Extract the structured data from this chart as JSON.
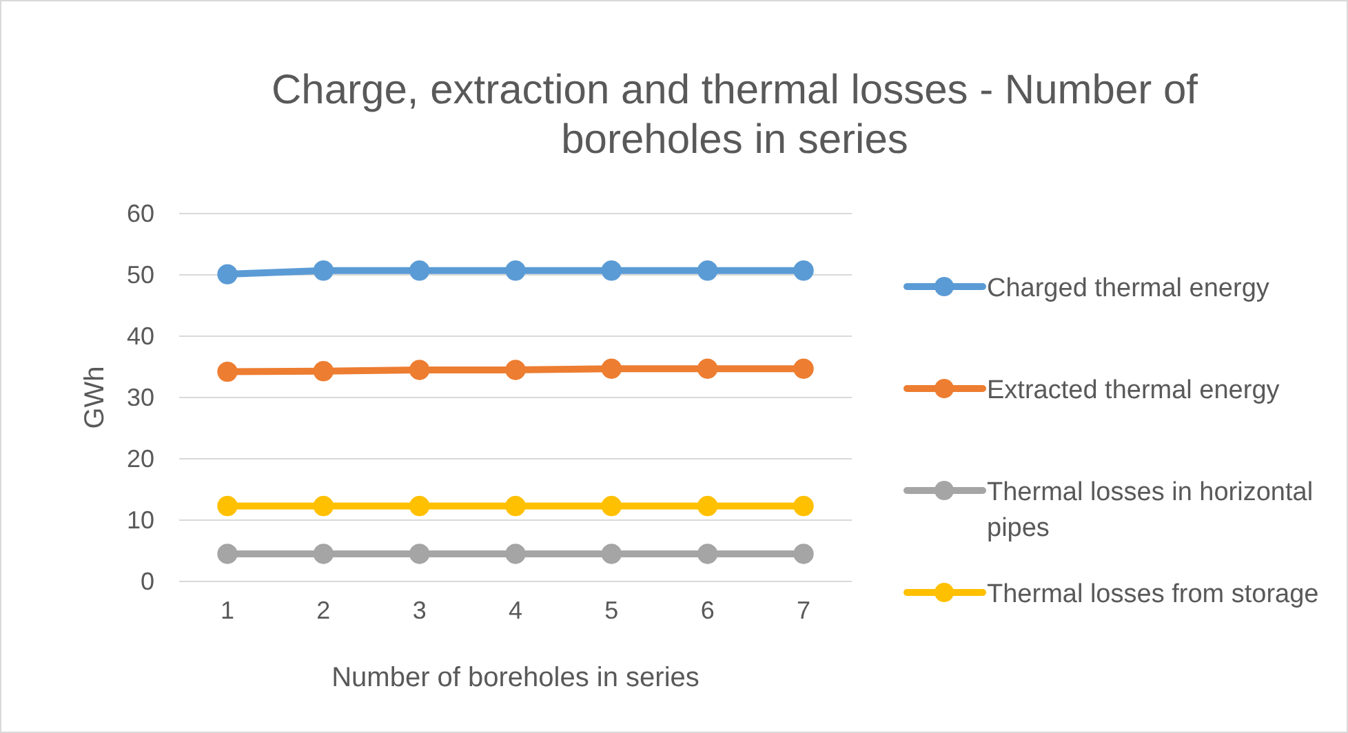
{
  "chart_data": {
    "type": "line",
    "title": "Charge, extraction and thermal losses - Number of boreholes in series",
    "xlabel": "Number of boreholes in series",
    "ylabel": "GWh",
    "categories": [
      "1",
      "2",
      "3",
      "4",
      "5",
      "6",
      "7"
    ],
    "ylim": [
      0,
      60
    ],
    "yticks": [
      0,
      10,
      20,
      30,
      40,
      50,
      60
    ],
    "grid": "y",
    "legend": "right",
    "marker": "circle",
    "series": [
      {
        "name": "Charged thermal energy",
        "color": "#5b9bd5",
        "values": [
          50.1,
          50.7,
          50.7,
          50.7,
          50.7,
          50.7,
          50.7
        ]
      },
      {
        "name": "Extracted thermal energy",
        "color": "#ed7d31",
        "values": [
          34.2,
          34.3,
          34.5,
          34.5,
          34.7,
          34.7,
          34.7
        ]
      },
      {
        "name": "Thermal losses in horizontal pipes",
        "color": "#a5a5a5",
        "values": [
          4.5,
          4.5,
          4.5,
          4.5,
          4.5,
          4.5,
          4.5
        ]
      },
      {
        "name": "Thermal losses from storage",
        "color": "#ffc000",
        "values": [
          12.3,
          12.3,
          12.3,
          12.3,
          12.3,
          12.3,
          12.3
        ]
      }
    ]
  }
}
